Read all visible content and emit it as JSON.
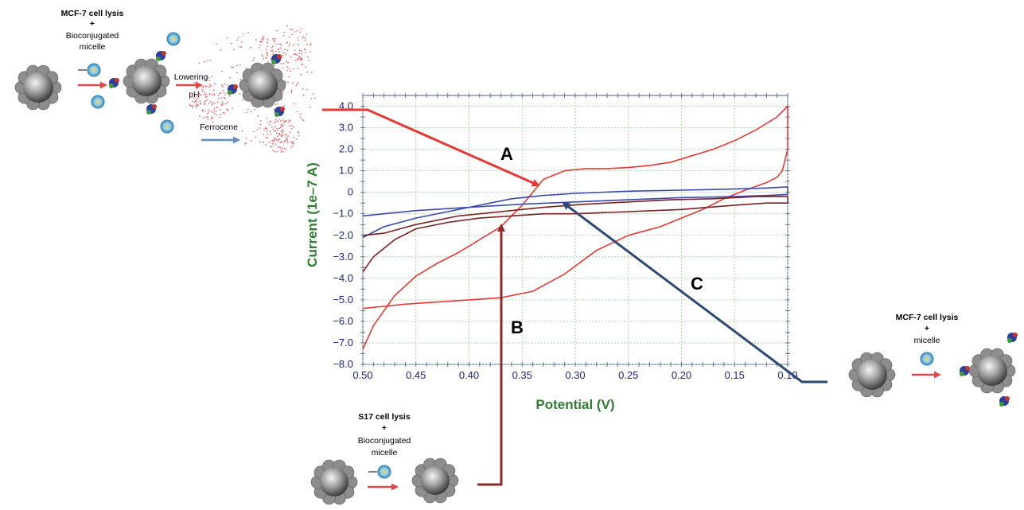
{
  "chart_data": {
    "type": "line",
    "xlabel": "Potential (V)",
    "ylabel": "Current (1e–7 A)",
    "xlim": [
      0.5,
      0.1
    ],
    "ylim": [
      -8.0,
      4.5
    ],
    "x_ticks": [
      "0.50",
      "0.45",
      "0.40",
      "0.35",
      "0.30",
      "0.25",
      "0.20",
      "0.15",
      "0.10"
    ],
    "y_ticks": [
      "4.0",
      "3.0",
      "2.0",
      "1.0",
      "0",
      "−1.0",
      "−2.0",
      "−3.0",
      "−4.0",
      "−5.0",
      "−6.0",
      "−7.0",
      "−8.0"
    ],
    "grid": true,
    "series": [
      {
        "color": "#e53935",
        "x": [
          0.5,
          0.49,
          0.47,
          0.45,
          0.43,
          0.41,
          0.39,
          0.37,
          0.35,
          0.33,
          0.31,
          0.29,
          0.27,
          0.25,
          0.23,
          0.21,
          0.19,
          0.17,
          0.15,
          0.13,
          0.11,
          0.1,
          0.1,
          0.105,
          0.11,
          0.12,
          0.14,
          0.16,
          0.18,
          0.2,
          0.22,
          0.25,
          0.28,
          0.31,
          0.34,
          0.37,
          0.4,
          0.43,
          0.46,
          0.48,
          0.5
        ],
        "y": [
          -7.3,
          -6.2,
          -4.8,
          -3.9,
          -3.3,
          -2.8,
          -2.2,
          -1.6,
          -0.6,
          0.6,
          1.0,
          1.1,
          1.1,
          1.15,
          1.25,
          1.4,
          1.7,
          2.0,
          2.4,
          2.9,
          3.5,
          4.0,
          2.0,
          1.0,
          0.7,
          0.45,
          0.1,
          -0.3,
          -0.8,
          -1.2,
          -1.6,
          -2.0,
          -2.7,
          -3.8,
          -4.6,
          -4.9,
          -5.0,
          -5.1,
          -5.2,
          -5.3,
          -5.4
        ]
      },
      {
        "color": "#3949ab",
        "x": [
          0.5,
          0.48,
          0.45,
          0.42,
          0.39,
          0.36,
          0.33,
          0.3,
          0.25,
          0.2,
          0.15,
          0.12,
          0.1,
          0.1,
          0.12,
          0.15,
          0.2,
          0.25,
          0.3,
          0.35,
          0.4,
          0.45,
          0.48,
          0.5
        ],
        "y": [
          -2.1,
          -1.6,
          -1.2,
          -0.9,
          -0.6,
          -0.3,
          -0.15,
          -0.05,
          0.05,
          0.1,
          0.15,
          0.2,
          0.25,
          -0.1,
          -0.15,
          -0.2,
          -0.25,
          -0.35,
          -0.45,
          -0.55,
          -0.7,
          -0.85,
          -1.0,
          -1.1
        ]
      },
      {
        "color": "#7b1f1f",
        "x": [
          0.5,
          0.49,
          0.47,
          0.45,
          0.42,
          0.39,
          0.36,
          0.33,
          0.3,
          0.25,
          0.2,
          0.15,
          0.12,
          0.1,
          0.1,
          0.13,
          0.17,
          0.21,
          0.25,
          0.29,
          0.33,
          0.37,
          0.41,
          0.45,
          0.48,
          0.5
        ],
        "y": [
          -3.7,
          -3.0,
          -2.2,
          -1.7,
          -1.4,
          -1.2,
          -1.1,
          -1.0,
          -1.0,
          -0.9,
          -0.8,
          -0.6,
          -0.5,
          -0.5,
          -0.2,
          -0.2,
          -0.3,
          -0.35,
          -0.45,
          -0.55,
          -0.7,
          -0.9,
          -1.1,
          -1.5,
          -1.9,
          -2.0
        ]
      }
    ],
    "annotations": [
      "A",
      "B",
      "C"
    ]
  },
  "schematic": {
    "top_left": {
      "line1": "MCF-7 cell lysis",
      "plus": "+",
      "line2": "Bioconjugated",
      "line3": "micelle",
      "step_label_1": "Lowering",
      "step_label_2": "pH",
      "release_label": "Ferrocene"
    },
    "bottom_center": {
      "line1": "S17 cell lysis",
      "plus": "+",
      "line2": "Bioconjugated",
      "line3": "micelle"
    },
    "right": {
      "line1": "MCF-7 cell lysis",
      "plus": "+",
      "line2": "micelle"
    }
  },
  "colors": {
    "pointer_a": "#e53935",
    "pointer_b": "#8b2a2a",
    "pointer_c": "#2c4a73",
    "process_arrow": "#d94b4b",
    "ferrocene_arrow": "#5f8fc0"
  }
}
